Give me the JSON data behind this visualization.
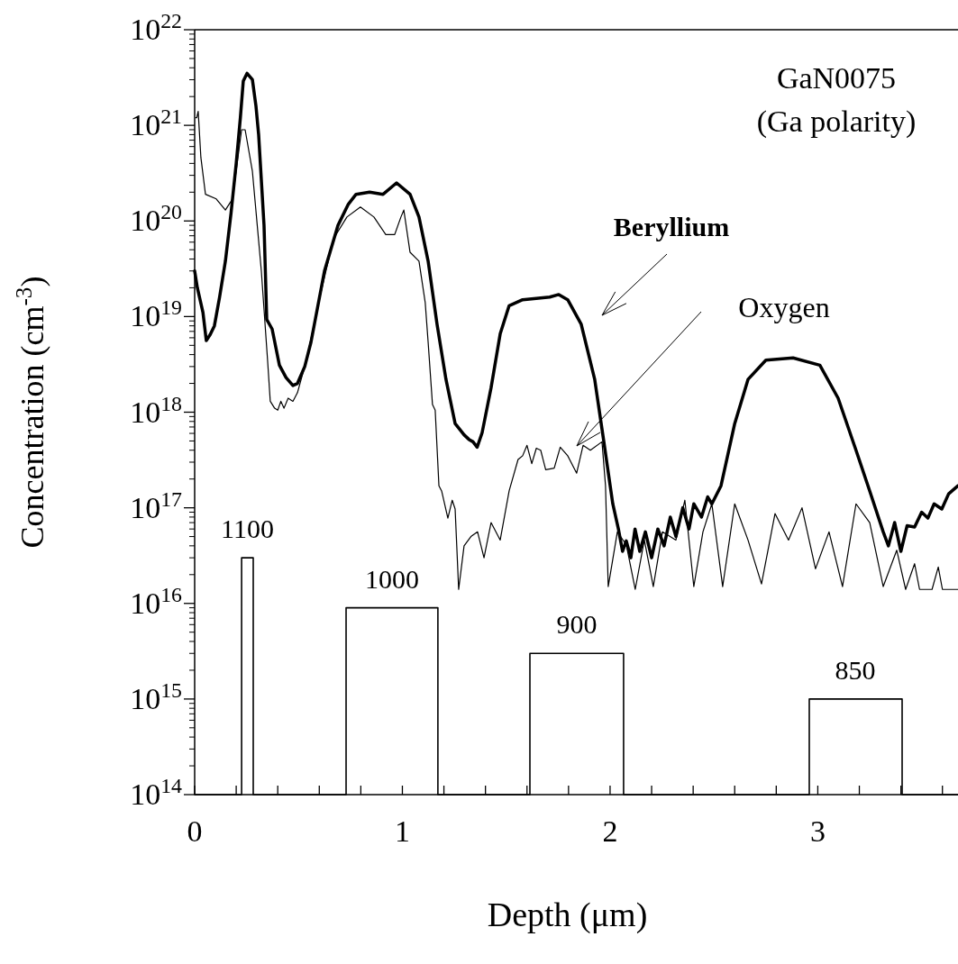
{
  "chart_data": {
    "type": "line",
    "xlabel": "Depth (μm)",
    "ylabel": "Concentration (cm$^{-3}$)",
    "log": true,
    "grid": false,
    "marker": "none",
    "line_style": "solid",
    "xlim": [
      0,
      3.675
    ],
    "xticks": [
      0,
      {
        "value": 0.2,
        "label": null
      },
      {
        "value": 0.4,
        "label": null
      },
      {
        "value": 0.6,
        "label": null
      },
      {
        "value": 0.8,
        "label": null
      },
      1,
      {
        "value": 1.2,
        "label": null
      },
      {
        "value": 1.4,
        "label": null
      },
      {
        "value": 1.6,
        "label": null
      },
      {
        "value": 1.8,
        "label": null
      },
      2,
      {
        "value": 2.2,
        "label": null
      },
      {
        "value": 2.4,
        "label": null
      },
      {
        "value": 2.6,
        "label": null
      },
      {
        "value": 2.8,
        "label": null
      },
      3,
      {
        "value": 3.2,
        "label": null
      },
      {
        "value": 3.4,
        "label": null
      },
      {
        "value": 3.6,
        "label": null
      }
    ],
    "ylim": [
      100000000000000.0,
      1e+22
    ],
    "yticks": [
      {
        "value": 100000000000000.0,
        "label": "10$^{14}$"
      },
      {
        "value": 1000000000000000.0,
        "label": "10$^{15}$"
      },
      {
        "value": 1e+16,
        "label": "10$^{16}$"
      },
      {
        "value": 1e+17,
        "label": "10$^{17}$"
      },
      {
        "value": 1e+18,
        "label": "10$^{18}$"
      },
      {
        "value": 1e+19,
        "label": "10$^{19}$"
      },
      {
        "value": 1e+20,
        "label": "10$^{20}$"
      },
      {
        "value": 1e+21,
        "label": "10$^{21}$"
      },
      {
        "value": 1e+22,
        "label": "10$^{22}$"
      }
    ],
    "series": [
      {
        "color": "#000000",
        "x": [
          0,
          0.013,
          0.026,
          0.04,
          0.056,
          0.075,
          0.095,
          0.12,
          0.148,
          0.175,
          0.2,
          0.22,
          0.234,
          0.252,
          0.278,
          0.295,
          0.308,
          0.334,
          0.347,
          0.373,
          0.408,
          0.44,
          0.473,
          0.495,
          0.53,
          0.56,
          0.625,
          0.69,
          0.74,
          0.777,
          0.842,
          0.907,
          0.972,
          1.037,
          1.08,
          1.124,
          1.167,
          1.21,
          1.254,
          1.297,
          1.32,
          1.34,
          1.36,
          1.384,
          1.427,
          1.471,
          1.514,
          1.579,
          1.709,
          1.753,
          1.796,
          1.861,
          1.926,
          1.97,
          2.013,
          2.04,
          2.06,
          2.078,
          2.1,
          2.12,
          2.143,
          2.17,
          2.2,
          2.23,
          2.26,
          2.29,
          2.317,
          2.35,
          2.38,
          2.403,
          2.44,
          2.47,
          2.49,
          2.534,
          2.6,
          2.664,
          2.75,
          2.881,
          3.01,
          3.098,
          3.184,
          3.25,
          3.315,
          3.34,
          3.37,
          3.4,
          3.43,
          3.466,
          3.5,
          3.53,
          3.56,
          3.597,
          3.63,
          3.675
        ],
        "values": [
          3e+19,
          2e+19,
          1.5e+19,
          1.1e+19,
          5.6e+18,
          6.5e+18,
          8e+18,
          1.6e+19,
          3.8e+19,
          1.2e+20,
          4e+20,
          1.2e+21,
          2.9e+21,
          3.5e+21,
          3e+21,
          1.6e+21,
          8e+20,
          9e+19,
          9.3e+18,
          7.4e+18,
          3.1e+18,
          2.3e+18,
          1.9e+18,
          2e+18,
          3e+18,
          5.4e+18,
          3e+19,
          9e+19,
          1.5e+20,
          1.9e+20,
          2e+20,
          1.9e+20,
          2.5e+20,
          1.9e+20,
          1.1e+20,
          3.8e+19,
          8.3e+18,
          2.2e+18,
          7.6e+17,
          5.8e+17,
          5.2e+17,
          4.9e+17,
          4.3e+17,
          6.1e+17,
          1.8e+18,
          6.6e+18,
          1.3e+19,
          1.5e+19,
          1.6e+19,
          1.7e+19,
          1.5e+19,
          8.3e+18,
          2.2e+18,
          4.9e+17,
          1.1e+17,
          6e+16,
          3.5e+16,
          4.5e+16,
          3e+16,
          6e+16,
          3.5e+16,
          5.6e+16,
          3e+16,
          6e+16,
          4e+16,
          8e+16,
          5e+16,
          1e+17,
          6e+16,
          1.1e+17,
          8e+16,
          1.3e+17,
          1.1e+17,
          1.7e+17,
          7.6e+17,
          2.2e+18,
          3.5e+18,
          3.7e+18,
          3.1e+18,
          1.4e+18,
          4e+17,
          1.5e+17,
          5.6e+16,
          4e+16,
          7e+16,
          3.5e+16,
          6.5e+16,
          6.3e+16,
          9e+16,
          7.8e+16,
          1.1e+17,
          9.7e+16,
          1.4e+17,
          1.7e+17
        ]
      },
      {
        "color": "#000000",
        "x": [
          0.005,
          0.01,
          0.017,
          0.03,
          0.052,
          0.104,
          0.148,
          0.182,
          0.226,
          0.243,
          0.278,
          0.321,
          0.351,
          0.364,
          0.385,
          0.4,
          0.415,
          0.43,
          0.45,
          0.473,
          0.495,
          0.538,
          0.603,
          0.668,
          0.733,
          0.798,
          0.863,
          0.92,
          0.963,
          0.993,
          1.007,
          1.037,
          1.08,
          1.11,
          1.124,
          1.145,
          1.158,
          1.176,
          1.189,
          1.219,
          1.24,
          1.254,
          1.271,
          1.297,
          1.33,
          1.362,
          1.393,
          1.427,
          1.471,
          1.514,
          1.557,
          1.579,
          1.6,
          1.623,
          1.645,
          1.666,
          1.69,
          1.731,
          1.76,
          1.796,
          1.839,
          1.87,
          1.905,
          1.961,
          1.978,
          1.991,
          2.035,
          2.078,
          2.121,
          2.165,
          2.208,
          2.252,
          2.317,
          2.36,
          2.403,
          2.447,
          2.49,
          2.542,
          2.6,
          2.664,
          2.729,
          2.794,
          2.859,
          2.924,
          2.989,
          3.054,
          3.119,
          3.184,
          3.25,
          3.315,
          3.38,
          3.423,
          3.466,
          3.49,
          3.55,
          3.58,
          3.6,
          3.675
        ],
        "values": [
          1.2e+21,
          1.2e+21,
          1.4e+21,
          4.6e+20,
          1.9e+20,
          1.7e+20,
          1.3e+20,
          1.7e+20,
          9e+20,
          9e+20,
          3.3e+20,
          3e+19,
          3.5e+18,
          1.3e+18,
          1.1e+18,
          1.05e+18,
          1.3e+18,
          1.1e+18,
          1.4e+18,
          1.3e+18,
          1.6e+18,
          3.5e+18,
          1.6e+19,
          6.5e+19,
          1.1e+20,
          1.4e+20,
          1.1e+20,
          7.2e+19,
          7.2e+19,
          1.1e+20,
          1.3e+20,
          4.7e+19,
          3.8e+19,
          1.4e+19,
          5.4e+18,
          1.2e+18,
          1.05e+18,
          1.7e+17,
          1.5e+17,
          7.8e+16,
          1.2e+17,
          9.7e+16,
          1.4e+16,
          4e+16,
          5e+16,
          5.6e+16,
          3e+16,
          7e+16,
          4.6e+16,
          1.5e+17,
          3.2e+17,
          3.5e+17,
          4.5e+17,
          2.9e+17,
          4.2e+17,
          4e+17,
          2.5e+17,
          2.6e+17,
          4.3e+17,
          3.5e+17,
          2.3e+17,
          4.5e+17,
          4e+17,
          4.9e+17,
          1.7e+17,
          1.5e+16,
          5.6e+16,
          4.1e+16,
          1.4e+16,
          4.6e+16,
          1.5e+16,
          5.6e+16,
          4.6e+16,
          1.2e+17,
          1.5e+16,
          5.6e+16,
          1.1e+17,
          1.5e+16,
          1.1e+17,
          4.6e+16,
          1.6e+16,
          8.7e+16,
          4.6e+16,
          1e+17,
          2.3e+16,
          5.6e+16,
          1.5e+16,
          1.1e+17,
          7e+16,
          1.5e+16,
          3.6e+16,
          1.4e+16,
          2.6e+16,
          1.4e+16,
          1.4e+16,
          2.4e+16,
          1.4e+16,
          1.4e+16
        ]
      },
      {
        "color": "#000000",
        "x": [
          0,
          0.226,
          0.226,
          0.282,
          0.282,
          0.729,
          0.729,
          1.171,
          1.171,
          1.614,
          1.614,
          2.065,
          2.065,
          2.959,
          2.959,
          3.406,
          3.406,
          3.675
        ],
        "values": [
          100000000000000.0,
          100000000000000.0,
          3e+16,
          3e+16,
          100000000000000.0,
          100000000000000.0,
          9000000000000000.0,
          9000000000000000.0,
          100000000000000.0,
          100000000000000.0,
          3000000000000000.0,
          3000000000000000.0,
          100000000000000.0,
          100000000000000.0,
          1000000000000000.0,
          1000000000000000.0,
          100000000000000.0,
          100000000000000.0
        ]
      }
    ],
    "annotations": [
      "GaN0075\n(Ga polarity)",
      "Beryllium",
      "Oxygen",
      {
        "text": "1100",
        "x": 0.254,
        "y": 3e+16
      },
      {
        "text": "1000",
        "x": 0.95,
        "y": 9000000000000000.0
      },
      {
        "text": "900",
        "x": 1.84,
        "y": 3000000000000000.0
      },
      {
        "text": "850",
        "x": 3.18,
        "y": 1000000000000000.0
      }
    ]
  }
}
